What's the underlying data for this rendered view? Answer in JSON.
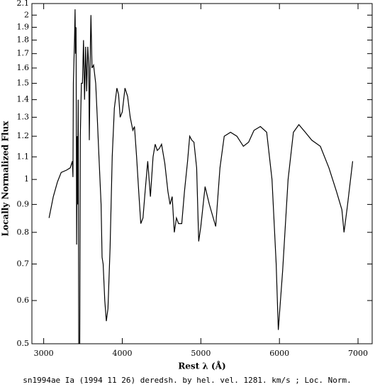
{
  "chart_data": {
    "type": "line",
    "x_label": "Rest λ (Å)",
    "y_label": "Locally Normalized Flux",
    "caption": "sn1994ae Ia (1994 11 26) deredsh. by hel. vel.  1281. km/s ;  Loc. Norm.",
    "xlim": [
      2850,
      7180
    ],
    "xticks": [
      3000,
      4000,
      5000,
      6000,
      7000
    ],
    "ylim": [
      0.5,
      2.1
    ],
    "yticks": [
      0.5,
      0.6,
      0.7,
      0.8,
      0.9,
      1,
      1.1,
      1.2,
      1.3,
      1.4,
      1.5,
      1.6,
      1.7,
      1.8,
      1.9,
      2,
      2.1
    ],
    "y_scale": "log",
    "x": [
      3068,
      3122,
      3176,
      3223,
      3291,
      3338,
      3365,
      3372,
      3378,
      3392,
      3399,
      3405,
      3412,
      3419,
      3426,
      3432,
      3439,
      3446,
      3453,
      3459,
      3466,
      3480,
      3493,
      3507,
      3520,
      3534,
      3547,
      3561,
      3574,
      3581,
      3595,
      3601,
      3615,
      3635,
      3662,
      3682,
      3703,
      3730,
      3743,
      3757,
      3777,
      3797,
      3818,
      3845,
      3872,
      3899,
      3932,
      3953,
      3973,
      4000,
      4034,
      4068,
      4101,
      4135,
      4155,
      4182,
      4209,
      4236,
      4264,
      4291,
      4324,
      4358,
      4392,
      4419,
      4446,
      4473,
      4500,
      4541,
      4581,
      4608,
      4635,
      4662,
      4689,
      4716,
      4757,
      4791,
      4831,
      4858,
      4885,
      4912,
      4946,
      4973,
      5000,
      5054,
      5108,
      5189,
      5243,
      5297,
      5378,
      5459,
      5541,
      5608,
      5676,
      5757,
      5838,
      5905,
      5959,
      5986,
      6041,
      6110,
      6178,
      6247,
      6329,
      6411,
      6521,
      6630,
      6726,
      6795,
      6822,
      6863,
      6932
    ],
    "series": [
      {
        "color": "#000000",
        "values": [
          0.85,
          0.93,
          0.99,
          1.03,
          1.04,
          1.05,
          1.08,
          1.01,
          1.5,
          1.8,
          2.05,
          1.7,
          1.9,
          0.76,
          1.2,
          0.9,
          1.4,
          0.5,
          0.5,
          0.5,
          1.2,
          1.5,
          1.5,
          1.8,
          1.4,
          1.75,
          1.45,
          1.75,
          1.6,
          1.18,
          1.8,
          2.0,
          1.6,
          1.62,
          1.5,
          1.3,
          1.1,
          0.9,
          0.72,
          0.7,
          0.6,
          0.55,
          0.58,
          0.75,
          1.1,
          1.35,
          1.47,
          1.43,
          1.3,
          1.33,
          1.47,
          1.42,
          1.3,
          1.23,
          1.25,
          1.1,
          0.95,
          0.83,
          0.85,
          0.95,
          1.08,
          0.93,
          1.1,
          1.16,
          1.13,
          1.14,
          1.16,
          1.07,
          0.95,
          0.9,
          0.93,
          0.8,
          0.85,
          0.83,
          0.83,
          0.95,
          1.08,
          1.2,
          1.18,
          1.17,
          1.05,
          0.77,
          0.82,
          0.97,
          0.9,
          0.82,
          1.05,
          1.2,
          1.22,
          1.2,
          1.15,
          1.17,
          1.23,
          1.25,
          1.22,
          1.0,
          0.7,
          0.53,
          0.68,
          1.0,
          1.22,
          1.26,
          1.22,
          1.18,
          1.15,
          1.05,
          0.95,
          0.88,
          0.8,
          0.89,
          1.08
        ]
      }
    ]
  }
}
